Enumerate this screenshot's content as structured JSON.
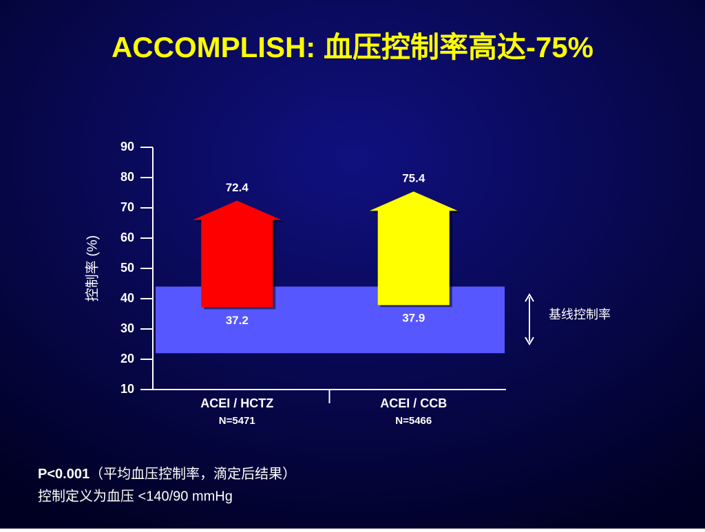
{
  "chart_data": {
    "type": "arrow",
    "title": "ACCOMPLISH: 血压控制率高达-75%",
    "y_label": "控制率 (%)",
    "categories": [
      "ACEI / HCTZ",
      "ACEI / CCB"
    ],
    "sample_sizes": [
      "N=5471",
      "N=5466"
    ],
    "start_values": [
      37.2,
      37.9
    ],
    "end_values": [
      72.4,
      75.4
    ],
    "colors": [
      "#ff0000",
      "#ffff00"
    ],
    "ylim": [
      10,
      90
    ],
    "yticks": [
      10,
      20,
      30,
      40,
      50,
      60,
      70,
      80,
      90
    ],
    "baseline_band": [
      22,
      44
    ],
    "baseline_color": "#5757ff",
    "baseline_label": "基线控制率"
  },
  "notes": [
    {
      "bold": "P<0.001",
      "text": "（平均血压控制率，滴定后结果）"
    },
    {
      "text": "控制定义为血压 <140/90 mmHg"
    }
  ]
}
